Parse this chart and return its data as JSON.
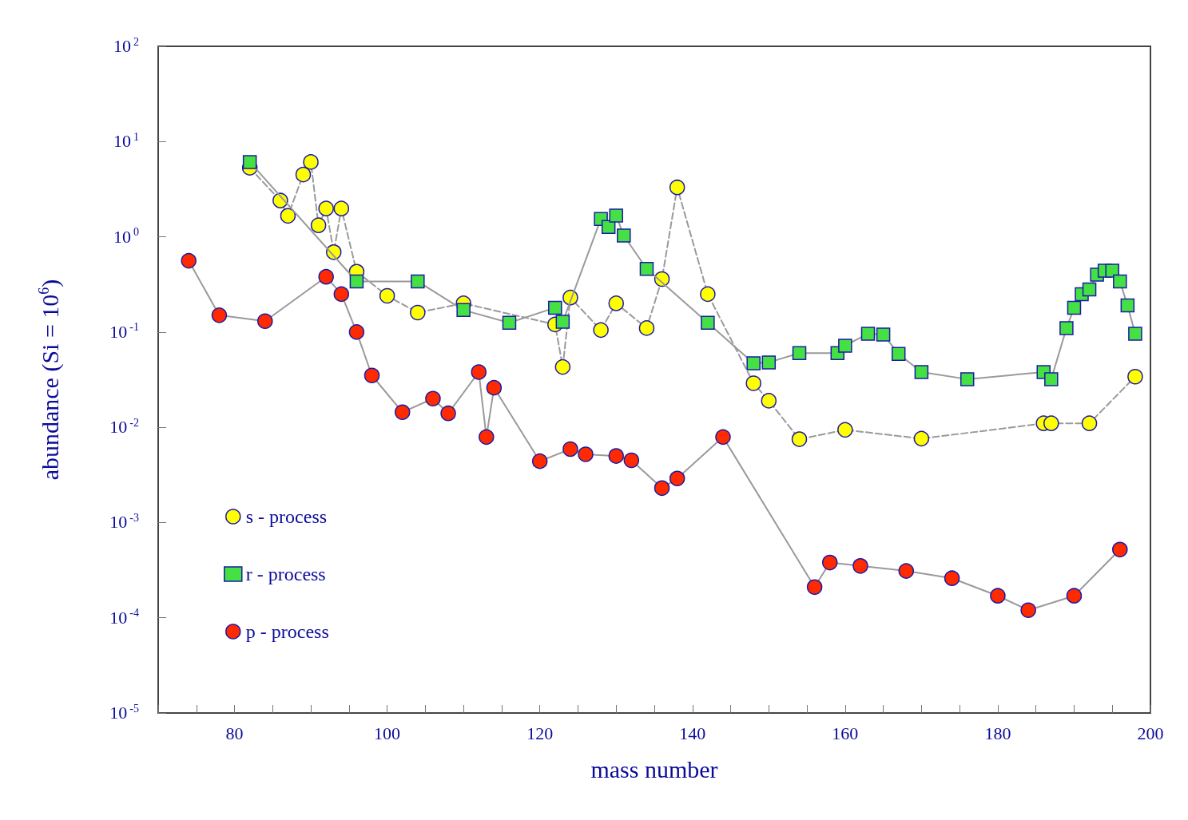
{
  "chart_data": {
    "type": "line",
    "xlabel": "mass number",
    "ylabel": "abundance (Si = 10$^{6}$)",
    "log": "y",
    "grid": false,
    "legend": "bottom left",
    "xlim": [
      70,
      200
    ],
    "xticks": [
      {
        "value": 70,
        "label": null
      },
      {
        "value": 75,
        "label": null
      },
      80,
      {
        "value": 85,
        "label": null
      },
      {
        "value": 90,
        "label": null
      },
      {
        "value": 95,
        "label": null
      },
      100,
      {
        "value": 105,
        "label": null
      },
      {
        "value": 110,
        "label": null
      },
      {
        "value": 115,
        "label": null
      },
      120,
      {
        "value": 125,
        "label": null
      },
      {
        "value": 130,
        "label": null
      },
      {
        "value": 135,
        "label": null
      },
      140,
      {
        "value": 145,
        "label": null
      },
      {
        "value": 150,
        "label": null
      },
      {
        "value": 155,
        "label": null
      },
      160,
      {
        "value": 165,
        "label": null
      },
      {
        "value": 170,
        "label": null
      },
      {
        "value": 175,
        "label": null
      },
      180,
      {
        "value": 185,
        "label": null
      },
      {
        "value": 190,
        "label": null
      },
      {
        "value": 195,
        "label": null
      },
      200
    ],
    "ylim": [
      1e-05,
      100
    ],
    "yticks": [
      {
        "value": 1e-05,
        "label": "10$^{-5}$"
      },
      {
        "value": 0.0001,
        "label": "10$^{-4}$"
      },
      {
        "value": 0.001,
        "label": "10$^{-3}$"
      },
      {
        "value": 0.01,
        "label": "10$^{-2}$"
      },
      {
        "value": 0.1,
        "label": "10$^{-1}$"
      },
      {
        "value": 1,
        "label": "10$^{0}$"
      },
      {
        "value": 10,
        "label": "10$^{1}$"
      },
      {
        "value": 100,
        "label": "10$^{2}$"
      }
    ],
    "series": [
      {
        "name": "s - process",
        "color": "#ffff00",
        "marker": "circle",
        "line_style": "dashed",
        "x": [
          82,
          86,
          87,
          89,
          90,
          91,
          92,
          93,
          94,
          96,
          100,
          104,
          110,
          122,
          123,
          124,
          128,
          130,
          134,
          136,
          138,
          142,
          148,
          150,
          154,
          160,
          170,
          186,
          187,
          192,
          198
        ],
        "values": [
          5.3,
          2.4,
          1.66,
          4.5,
          6.1,
          1.32,
          1.98,
          0.69,
          1.98,
          0.43,
          0.24,
          0.16,
          0.2,
          0.12,
          0.043,
          0.23,
          0.105,
          0.2,
          0.11,
          0.36,
          3.3,
          0.25,
          0.029,
          0.019,
          0.0075,
          0.0094,
          0.0076,
          0.011,
          0.011,
          0.011,
          0.034
        ]
      },
      {
        "name": "r - process",
        "color": "#44e044",
        "marker": "square",
        "line_style": "solid",
        "x": [
          82,
          96,
          104,
          110,
          116,
          122,
          123,
          128,
          129,
          130,
          131,
          134,
          142,
          148,
          150,
          154,
          159,
          160,
          163,
          165,
          167,
          170,
          176,
          186,
          187,
          189,
          190,
          191,
          192,
          193,
          194,
          195,
          196,
          197,
          198
        ],
        "values": [
          6.1,
          0.34,
          0.34,
          0.17,
          0.125,
          0.18,
          0.128,
          1.54,
          1.27,
          1.67,
          1.03,
          0.46,
          0.125,
          0.047,
          0.048,
          0.06,
          0.06,
          0.072,
          0.096,
          0.094,
          0.059,
          0.038,
          0.032,
          0.038,
          0.032,
          0.11,
          0.18,
          0.25,
          0.28,
          0.4,
          0.44,
          0.44,
          0.34,
          0.19,
          0.096
        ]
      },
      {
        "name": "p - process",
        "color": "#ff2a00",
        "marker": "circle",
        "line_style": "solid",
        "x": [
          74,
          78,
          84,
          92,
          94,
          96,
          98,
          102,
          106,
          108,
          112,
          113,
          114,
          120,
          124,
          126,
          130,
          132,
          136,
          138,
          144,
          156,
          158,
          162,
          168,
          174,
          180,
          184,
          190,
          196
        ],
        "values": [
          0.56,
          0.15,
          0.13,
          0.38,
          0.25,
          0.1,
          0.035,
          0.0144,
          0.02,
          0.014,
          0.038,
          0.0079,
          0.026,
          0.0044,
          0.0059,
          0.0052,
          0.005,
          0.0045,
          0.0023,
          0.0029,
          0.0079,
          0.00021,
          0.00038,
          0.00035,
          0.00031,
          0.00026,
          0.00017,
          0.00012,
          0.00017,
          0.00052
        ]
      }
    ]
  }
}
